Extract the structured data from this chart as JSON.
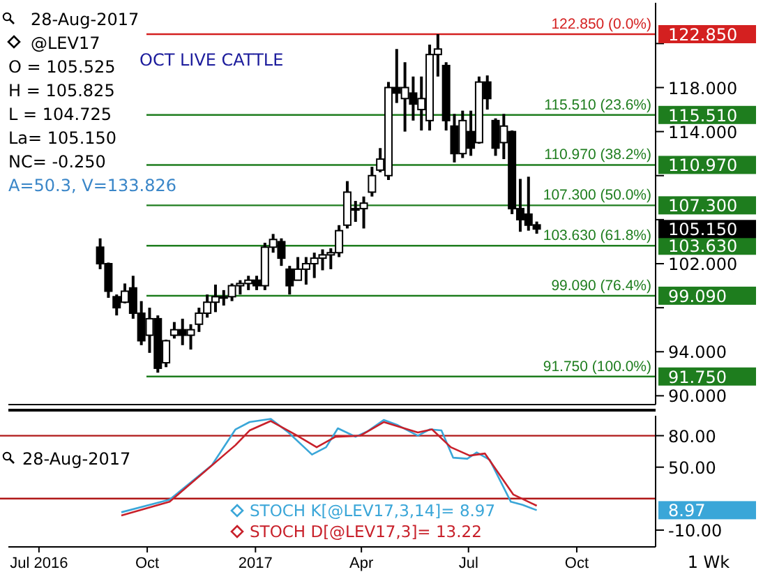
{
  "chart_data": [
    {
      "type": "candlestick",
      "title": "OCT LIVE CATTLE",
      "tick_labels": "y",
      "color": "#000000",
      "annotations": [
        "28-Aug-2017",
        "@LEV17",
        "O = 105.525",
        "H = 105.825",
        "L = 104.725",
        "La= 105.150",
        "NC= -0.250",
        "A=50.3, V=133.826"
      ],
      "xlim": [
        "2016-06-05",
        "2017-12-07"
      ],
      "ylim": [
        89.2,
        125.7
      ],
      "yticks": [
        {
          "value": 90,
          "label": "90.000"
        },
        {
          "value": 91.75,
          "label": "91.750"
        },
        {
          "value": 94,
          "label": "94.000"
        },
        {
          "value": 98,
          "label": null
        },
        {
          "value": 99.09,
          "label": "99.090"
        },
        {
          "value": 102,
          "label": "102.000"
        },
        {
          "value": 103.63,
          "label": "103.630"
        },
        {
          "value": 105.15,
          "label": "105.150"
        },
        {
          "value": 106,
          "label": null
        },
        {
          "value": 107.3,
          "label": "107.300"
        },
        {
          "value": 110,
          "label": null
        },
        {
          "value": 110.97,
          "label": "110.970"
        },
        {
          "value": 114,
          "label": "114.000"
        },
        {
          "value": 115.51,
          "label": "115.510"
        },
        {
          "value": 118,
          "label": "118.000"
        },
        {
          "value": 122,
          "label": null
        },
        {
          "value": 122.85,
          "label": "122.850"
        }
      ],
      "x": [
        "2016-08-22",
        "2016-08-29",
        "2016-09-05",
        "2016-09-12",
        "2016-09-19",
        "2016-09-26",
        "2016-10-03",
        "2016-10-10",
        "2016-10-17",
        "2016-10-24",
        "2016-10-31",
        "2016-11-07",
        "2016-11-14",
        "2016-11-21",
        "2016-11-28",
        "2016-12-05",
        "2016-12-12",
        "2016-12-19",
        "2016-12-26",
        "2017-01-02",
        "2017-01-09",
        "2017-01-16",
        "2017-01-23",
        "2017-01-30",
        "2017-02-06",
        "2017-02-13",
        "2017-02-20",
        "2017-02-27",
        "2017-03-06",
        "2017-03-13",
        "2017-03-20",
        "2017-03-27",
        "2017-04-03",
        "2017-04-10",
        "2017-04-17",
        "2017-04-24",
        "2017-05-01",
        "2017-05-08",
        "2017-05-15",
        "2017-05-22",
        "2017-05-29",
        "2017-06-05",
        "2017-06-12",
        "2017-06-19",
        "2017-06-26",
        "2017-07-03",
        "2017-07-10",
        "2017-07-17",
        "2017-07-24",
        "2017-07-31",
        "2017-08-07",
        "2017-08-14",
        "2017-08-21",
        "2017-08-28"
      ],
      "ohlc": [
        [
          103.5,
          104.3,
          101.5,
          102.0
        ],
        [
          102.0,
          102.1,
          98.9,
          99.5
        ],
        [
          99.0,
          99.2,
          97.3,
          98.0
        ],
        [
          98.5,
          100.2,
          98.4,
          99.5
        ],
        [
          99.8,
          100.9,
          97.0,
          97.5
        ],
        [
          97.5,
          98.6,
          94.6,
          95.0
        ],
        [
          95.5,
          98.0,
          93.9,
          97.0
        ],
        [
          97.0,
          97.3,
          92.1,
          92.5
        ],
        [
          93.0,
          95.1,
          92.6,
          95.0
        ],
        [
          95.5,
          96.7,
          95.2,
          96.0
        ],
        [
          96.0,
          97.0,
          94.6,
          95.5
        ],
        [
          95.5,
          96.5,
          94.2,
          96.0
        ],
        [
          96.5,
          98.0,
          95.8,
          97.5
        ],
        [
          97.5,
          99.2,
          97.1,
          98.5
        ],
        [
          98.5,
          100.1,
          97.6,
          99.0
        ],
        [
          99.0,
          99.6,
          98.2,
          99.0
        ],
        [
          99.0,
          100.2,
          98.6,
          100.0
        ],
        [
          100.0,
          100.5,
          99.2,
          100.2
        ],
        [
          100.2,
          100.9,
          99.6,
          100.5
        ],
        [
          100.5,
          100.9,
          99.6,
          100.0
        ],
        [
          100.0,
          103.9,
          99.6,
          103.5
        ],
        [
          103.5,
          104.7,
          103.0,
          104.2
        ],
        [
          104.0,
          104.3,
          101.8,
          102.5
        ],
        [
          101.5,
          101.8,
          99.2,
          100.0
        ],
        [
          100.5,
          102.6,
          100.5,
          101.5
        ],
        [
          101.5,
          102.6,
          100.1,
          102.0
        ],
        [
          102.0,
          103.0,
          100.7,
          102.5
        ],
        [
          102.5,
          103.3,
          101.4,
          102.8
        ],
        [
          102.8,
          103.4,
          101.5,
          103.0
        ],
        [
          103.0,
          105.5,
          102.6,
          105.0
        ],
        [
          105.5,
          109.5,
          105.2,
          108.5
        ],
        [
          107.0,
          107.7,
          105.8,
          107.0
        ],
        [
          107.0,
          108.1,
          105.2,
          107.5
        ],
        [
          108.5,
          110.8,
          108.1,
          110.0
        ],
        [
          110.5,
          112.5,
          110.3,
          111.5
        ],
        [
          110.0,
          118.5,
          109.6,
          118.0
        ],
        [
          118.0,
          121.5,
          116.6,
          117.5
        ],
        [
          117.0,
          120.3,
          114.0,
          118.0
        ],
        [
          117.5,
          119.0,
          115.0,
          116.5
        ],
        [
          116.0,
          119.0,
          114.1,
          117.0
        ],
        [
          115.0,
          121.9,
          114.1,
          121.0
        ],
        [
          121.0,
          122.85,
          119.0,
          121.5
        ],
        [
          120.0,
          120.3,
          114.1,
          115.0
        ],
        [
          114.5,
          115.6,
          111.2,
          112.0
        ],
        [
          112.0,
          115.9,
          111.6,
          115.0
        ],
        [
          114.0,
          115.9,
          111.8,
          112.5
        ],
        [
          113.0,
          119.0,
          112.9,
          118.5
        ],
        [
          118.5,
          119.1,
          116.0,
          117.0
        ],
        [
          115.0,
          115.2,
          111.8,
          112.5
        ],
        [
          113.0,
          115.6,
          111.5,
          114.5
        ],
        [
          114.0,
          114.1,
          106.5,
          107.0
        ],
        [
          107.0,
          109.7,
          104.9,
          106.0
        ],
        [
          106.5,
          109.9,
          105.0,
          105.5
        ],
        [
          105.525,
          105.825,
          104.725,
          105.15
        ]
      ],
      "ref_lines": [
        {
          "axis": "y",
          "value": 122.85,
          "label": "122.850 (0.0%)",
          "color": "#d42020"
        },
        {
          "axis": "y",
          "value": 115.51,
          "label": "115.510 (23.6%)",
          "color": "#1e7d1e"
        },
        {
          "axis": "y",
          "value": 110.97,
          "label": "110.970 (38.2%)",
          "color": "#1e7d1e"
        },
        {
          "axis": "y",
          "value": 107.3,
          "label": "107.300 (50.0%)",
          "color": "#1e7d1e"
        },
        {
          "axis": "y",
          "value": 103.63,
          "label": "103.630 (61.8%)",
          "color": "#1e7d1e"
        },
        {
          "axis": "y",
          "value": 99.09,
          "label": "99.090 (76.4%)",
          "color": "#1e7d1e"
        },
        {
          "axis": "y",
          "value": 91.75,
          "label": "91.750 (100.0%)",
          "color": "#1e7d1e"
        }
      ]
    },
    {
      "type": "line",
      "legend": "bottom",
      "annotations": [
        "28-Aug-2017"
      ],
      "xlabel": "1 Wk",
      "xlim": [
        "2016-06-05",
        "2017-12-07"
      ],
      "xticks": [
        {
          "value": "2016-07-01",
          "label": "Jul 2016"
        },
        {
          "value": "2016-10-01",
          "label": "Oct"
        },
        {
          "value": "2017-01-01",
          "label": "2017"
        },
        {
          "value": "2017-04-01",
          "label": "Apr"
        },
        {
          "value": "2017-07-01",
          "label": "Jul"
        },
        {
          "value": "2017-10-01",
          "label": "Oct"
        }
      ],
      "ylim": [
        -26,
        99
      ],
      "yticks": [
        {
          "value": 80,
          "label": "80.00"
        },
        {
          "value": 50,
          "label": "50.00"
        },
        {
          "value": 8.97,
          "label": "8.97"
        },
        {
          "value": -10,
          "label": "-10.00"
        }
      ],
      "ref_lines": [
        {
          "axis": "y",
          "value": 80,
          "color": "#b01818"
        },
        {
          "axis": "y",
          "value": 20,
          "color": "#b01818"
        }
      ],
      "series": [
        {
          "name": "STOCH K[@LEV17,3,14]= 8.97",
          "color": "#3aa6d8",
          "x": [
            "2016-09-09",
            "2016-10-20",
            "2016-11-25",
            "2016-12-15",
            "2016-12-27",
            "2017-01-14",
            "2017-01-29",
            "2017-02-18",
            "2017-03-02",
            "2017-03-12",
            "2017-03-27",
            "2017-04-06",
            "2017-04-20",
            "2017-05-02",
            "2017-05-19",
            "2017-05-29",
            "2017-06-08",
            "2017-06-18",
            "2017-06-30",
            "2017-07-08",
            "2017-07-19",
            "2017-08-06",
            "2017-08-16",
            "2017-08-28"
          ],
          "values": [
            7,
            19,
            52,
            86,
            93,
            96,
            83,
            62,
            69,
            87,
            79,
            84,
            95,
            90,
            80,
            86,
            85,
            59,
            58,
            64,
            57,
            17,
            14,
            8.97
          ]
        },
        {
          "name": "STOCH D[@LEV17,3]= 13.22",
          "color": "#c8202a",
          "x": [
            "2016-09-09",
            "2016-10-20",
            "2016-12-15",
            "2016-12-27",
            "2017-01-14",
            "2017-02-04",
            "2017-02-22",
            "2017-03-10",
            "2017-03-31",
            "2017-04-20",
            "2017-05-19",
            "2017-05-31",
            "2017-06-16",
            "2017-07-02",
            "2017-07-15",
            "2017-08-08",
            "2017-08-28"
          ],
          "values": [
            4,
            17,
            71,
            85,
            94,
            81,
            69,
            79,
            80,
            93,
            83,
            86,
            69,
            61,
            63,
            24,
            13.22
          ]
        }
      ]
    }
  ]
}
